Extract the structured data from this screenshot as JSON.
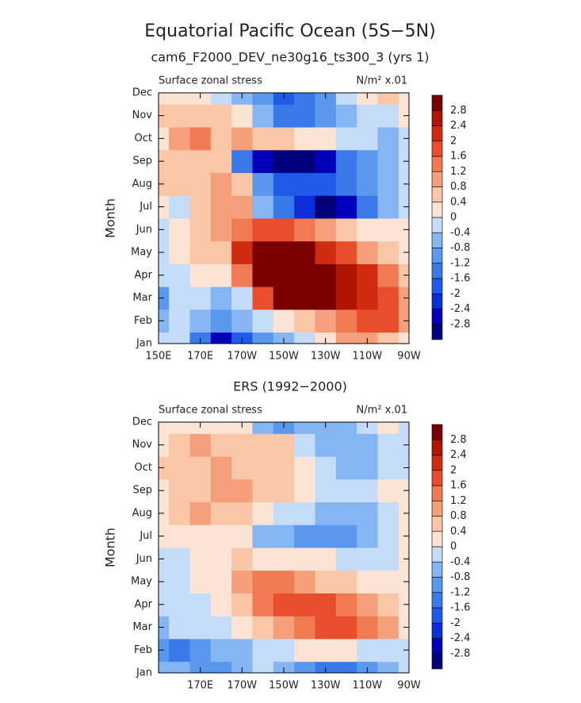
{
  "title": "Equatorial Pacific Ocean (5S−5N)",
  "chart_data": [
    {
      "type": "contour",
      "title": "cam6_F2000_DEV_ne30g16_ts300_3 (yrs 1)",
      "left_label": "Surface zonal stress",
      "right_label": "N/m² x.01",
      "ylabel": "Month",
      "categories": [
        "Jan",
        "Feb",
        "Mar",
        "Apr",
        "May",
        "Jun",
        "Jul",
        "Aug",
        "Sep",
        "Oct",
        "Nov",
        "Dec"
      ],
      "x": [
        150,
        160,
        170,
        180,
        190,
        200,
        210,
        220,
        230,
        240,
        250,
        260,
        270
      ],
      "xlim": [
        150,
        270
      ],
      "xticks": [
        {
          "value": 150,
          "label": "150E"
        },
        {
          "value": 170,
          "label": "170E"
        },
        {
          "value": 190,
          "label": "170W"
        },
        {
          "value": 210,
          "label": "150W"
        },
        {
          "value": 230,
          "label": "130W"
        },
        {
          "value": 250,
          "label": "110W"
        },
        {
          "value": 270,
          "label": "90W"
        }
      ],
      "levels": [
        -2.8,
        -2.4,
        -2,
        -1.6,
        -1.2,
        -0.8,
        -0.4,
        0,
        0.4,
        0.8,
        1.2,
        1.6,
        2,
        2.4,
        2.8
      ],
      "colors": [
        "#00007a",
        "#0000b8",
        "#0a2fd8",
        "#1f5ae8",
        "#3a7ae8",
        "#5a98ee",
        "#86b5f3",
        "#c4dcf8",
        "#fbe4d4",
        "#f9c6a8",
        "#f5a07a",
        "#f07a52",
        "#e84e2c",
        "#d02b10",
        "#b01500",
        "#7a0000"
      ],
      "values": [
        [
          -0.3,
          -0.3,
          -1.5,
          -2.5,
          -2,
          -1,
          -0.5,
          -0.2,
          0.3,
          0.8,
          1.0,
          0.6,
          0.3
        ],
        [
          -0.6,
          -0.4,
          -0.8,
          -1.2,
          -0.8,
          -0.3,
          0.2,
          0.6,
          0.8,
          1.2,
          1.6,
          1.6,
          0.8
        ],
        [
          -1.2,
          -0.4,
          -0.2,
          -0.6,
          -0.2,
          1.6,
          2.8,
          3.0,
          3.0,
          2.6,
          2.0,
          1.6,
          0.8
        ],
        [
          -0.3,
          -0.2,
          0.2,
          0.3,
          1.2,
          3.0,
          3.2,
          3.2,
          3.0,
          2.6,
          2.0,
          1.2,
          0.6
        ],
        [
          -0.2,
          0.2,
          0.4,
          0.6,
          2.0,
          3.0,
          3.0,
          2.8,
          2.2,
          1.6,
          1.0,
          0.6,
          0.3
        ],
        [
          -0.2,
          0.3,
          0.6,
          0.8,
          1.2,
          1.8,
          1.6,
          1.2,
          0.8,
          0.4,
          0.2,
          0.1,
          0.0
        ],
        [
          0.3,
          -0.4,
          0.4,
          1.0,
          0.8,
          -0.8,
          -1.6,
          -2.4,
          -3.0,
          -2.6,
          -1.6,
          -0.8,
          -0.2
        ],
        [
          0.4,
          0.4,
          0.6,
          0.8,
          0.4,
          -1.2,
          -2.0,
          -1.8,
          -1.8,
          -1.6,
          -1.0,
          -0.6,
          -0.3
        ],
        [
          0.4,
          0.4,
          0.6,
          0.6,
          -1.6,
          -2.8,
          -3.2,
          -3.2,
          -2.6,
          -1.6,
          -1.0,
          -0.6,
          -0.3
        ],
        [
          0.2,
          1.0,
          1.2,
          0.6,
          0.8,
          0.6,
          0.5,
          0.3,
          0.2,
          -0.2,
          -0.4,
          -0.5,
          -0.2
        ],
        [
          0.6,
          0.4,
          0.6,
          0.4,
          0.2,
          -0.6,
          -1.4,
          -1.6,
          -1.2,
          -0.6,
          -0.4,
          -0.3,
          0.3
        ],
        [
          0.3,
          0.2,
          0.2,
          -0.2,
          -0.6,
          -1.2,
          -1.8,
          -1.6,
          -1.0,
          -0.4,
          0.3,
          0.4,
          0.3
        ]
      ]
    },
    {
      "type": "contour",
      "title": "ERS (1992−2000)",
      "left_label": "Surface zonal stress",
      "right_label": "N/m² x.01",
      "ylabel": "Month",
      "categories": [
        "Jan",
        "Feb",
        "Mar",
        "Apr",
        "May",
        "Jun",
        "Jul",
        "Aug",
        "Sep",
        "Oct",
        "Nov",
        "Dec"
      ],
      "x": [
        150,
        160,
        170,
        180,
        190,
        200,
        210,
        220,
        230,
        240,
        250,
        260,
        270
      ],
      "xlim": [
        150,
        270
      ],
      "xticks": [
        {
          "value": 170,
          "label": "170E"
        },
        {
          "value": 190,
          "label": "170W"
        },
        {
          "value": 210,
          "label": "150W"
        },
        {
          "value": 230,
          "label": "130W"
        },
        {
          "value": 250,
          "label": "110W"
        },
        {
          "value": 270,
          "label": "90W"
        }
      ],
      "levels": [
        -2.8,
        -2.4,
        -2,
        -1.6,
        -1.2,
        -0.8,
        -0.4,
        0,
        0.4,
        0.8,
        1.2,
        1.6,
        2,
        2.4,
        2.8
      ],
      "colors": [
        "#00007a",
        "#0000b8",
        "#0a2fd8",
        "#1f5ae8",
        "#3a7ae8",
        "#5a98ee",
        "#86b5f3",
        "#c4dcf8",
        "#fbe4d4",
        "#f9c6a8",
        "#f5a07a",
        "#f07a52",
        "#e84e2c",
        "#d02b10",
        "#b01500",
        "#7a0000"
      ],
      "values": [
        [
          -0.8,
          -0.8,
          -1.2,
          -1.0,
          -0.6,
          -0.4,
          -0.8,
          -1.2,
          -1.4,
          -1.6,
          -1.2,
          -0.8,
          -0.4
        ],
        [
          -1.2,
          -1.6,
          -1.2,
          -0.8,
          -0.6,
          -0.4,
          -0.2,
          0.0,
          0.2,
          0.0,
          -0.2,
          -0.4,
          -0.4
        ],
        [
          -0.6,
          -0.4,
          -0.2,
          -0.4,
          0.2,
          0.6,
          1.0,
          1.2,
          1.6,
          1.8,
          1.4,
          0.8,
          0.3
        ],
        [
          -0.2,
          -0.2,
          -0.4,
          0.2,
          0.6,
          1.2,
          1.6,
          1.6,
          1.8,
          1.2,
          0.8,
          0.4,
          0.2
        ],
        [
          -0.4,
          -0.3,
          0.0,
          0.3,
          0.8,
          1.2,
          1.2,
          1.0,
          0.6,
          0.4,
          0.3,
          0.2,
          0.1
        ],
        [
          -0.2,
          -0.2,
          0.2,
          0.3,
          0.4,
          0.3,
          0.2,
          0.1,
          0.0,
          -0.1,
          -0.2,
          -0.2,
          0.0
        ],
        [
          0.2,
          0.3,
          0.3,
          0.2,
          0.1,
          -0.6,
          -0.8,
          -1.2,
          -1.2,
          -1.2,
          -0.8,
          -0.4,
          0.2
        ],
        [
          0.3,
          0.6,
          0.8,
          0.6,
          0.4,
          0.2,
          -0.2,
          -0.4,
          -0.6,
          -0.6,
          -0.6,
          -0.2,
          0.2
        ],
        [
          0.3,
          0.6,
          0.6,
          0.8,
          0.8,
          0.6,
          0.6,
          0.2,
          -0.3,
          -0.4,
          -0.4,
          0.0,
          0.3
        ],
        [
          0.4,
          0.6,
          0.4,
          0.8,
          0.6,
          0.6,
          0.4,
          0.2,
          -0.3,
          -0.5,
          -0.6,
          -0.4,
          -0.2
        ],
        [
          0.3,
          0.6,
          0.8,
          0.6,
          0.6,
          0.4,
          0.4,
          -0.2,
          -0.6,
          -0.8,
          -0.6,
          -0.2,
          -0.2
        ],
        [
          0.2,
          0.3,
          0.2,
          0.2,
          0.1,
          -0.6,
          -1.2,
          -0.8,
          -0.6,
          -0.8,
          -0.2,
          0.2,
          -0.2
        ]
      ]
    }
  ]
}
